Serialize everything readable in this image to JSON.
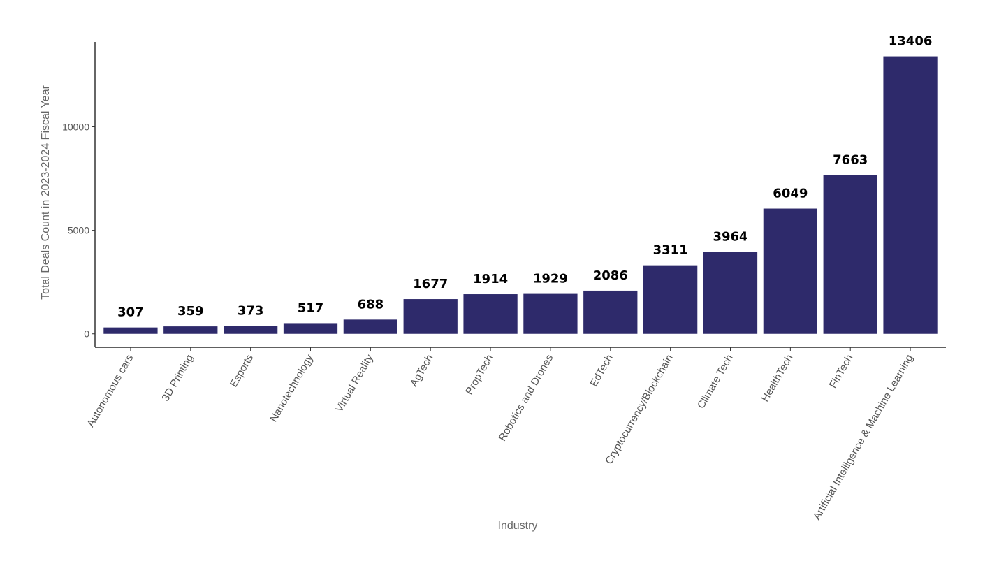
{
  "chart_data": {
    "type": "bar",
    "xlabel": "Industry",
    "ylabel": "Total Deals Count in 2023-2024 Fiscal Year",
    "categories": [
      "Autonomous cars",
      "3D Printing",
      "Esports",
      "Nanotechnology",
      "Virtual Reality",
      "AgTech",
      "PropTech",
      "Robotics and Drones",
      "EdTech",
      "Cryptocurrency/Blockchain",
      "Climate Tech",
      "HealthTech",
      "FinTech",
      "Artificial Intelligence & Machine Learning"
    ],
    "values": [
      307,
      359,
      373,
      517,
      688,
      1677,
      1914,
      1929,
      2086,
      3311,
      3964,
      6049,
      7663,
      13406
    ],
    "data_labels": [
      "307",
      "359",
      "373",
      "517",
      "688",
      "1677",
      "1914",
      "1929",
      "2086",
      "3311",
      "3964",
      "6049",
      "7663",
      "13406"
    ],
    "yticks": [
      0,
      5000,
      10000
    ],
    "ytick_labels": [
      "0",
      "5000",
      "10000"
    ],
    "ylim": [
      -650,
      14100
    ],
    "bar_color": "#2e2a6b",
    "grid": false,
    "legend": "none"
  }
}
